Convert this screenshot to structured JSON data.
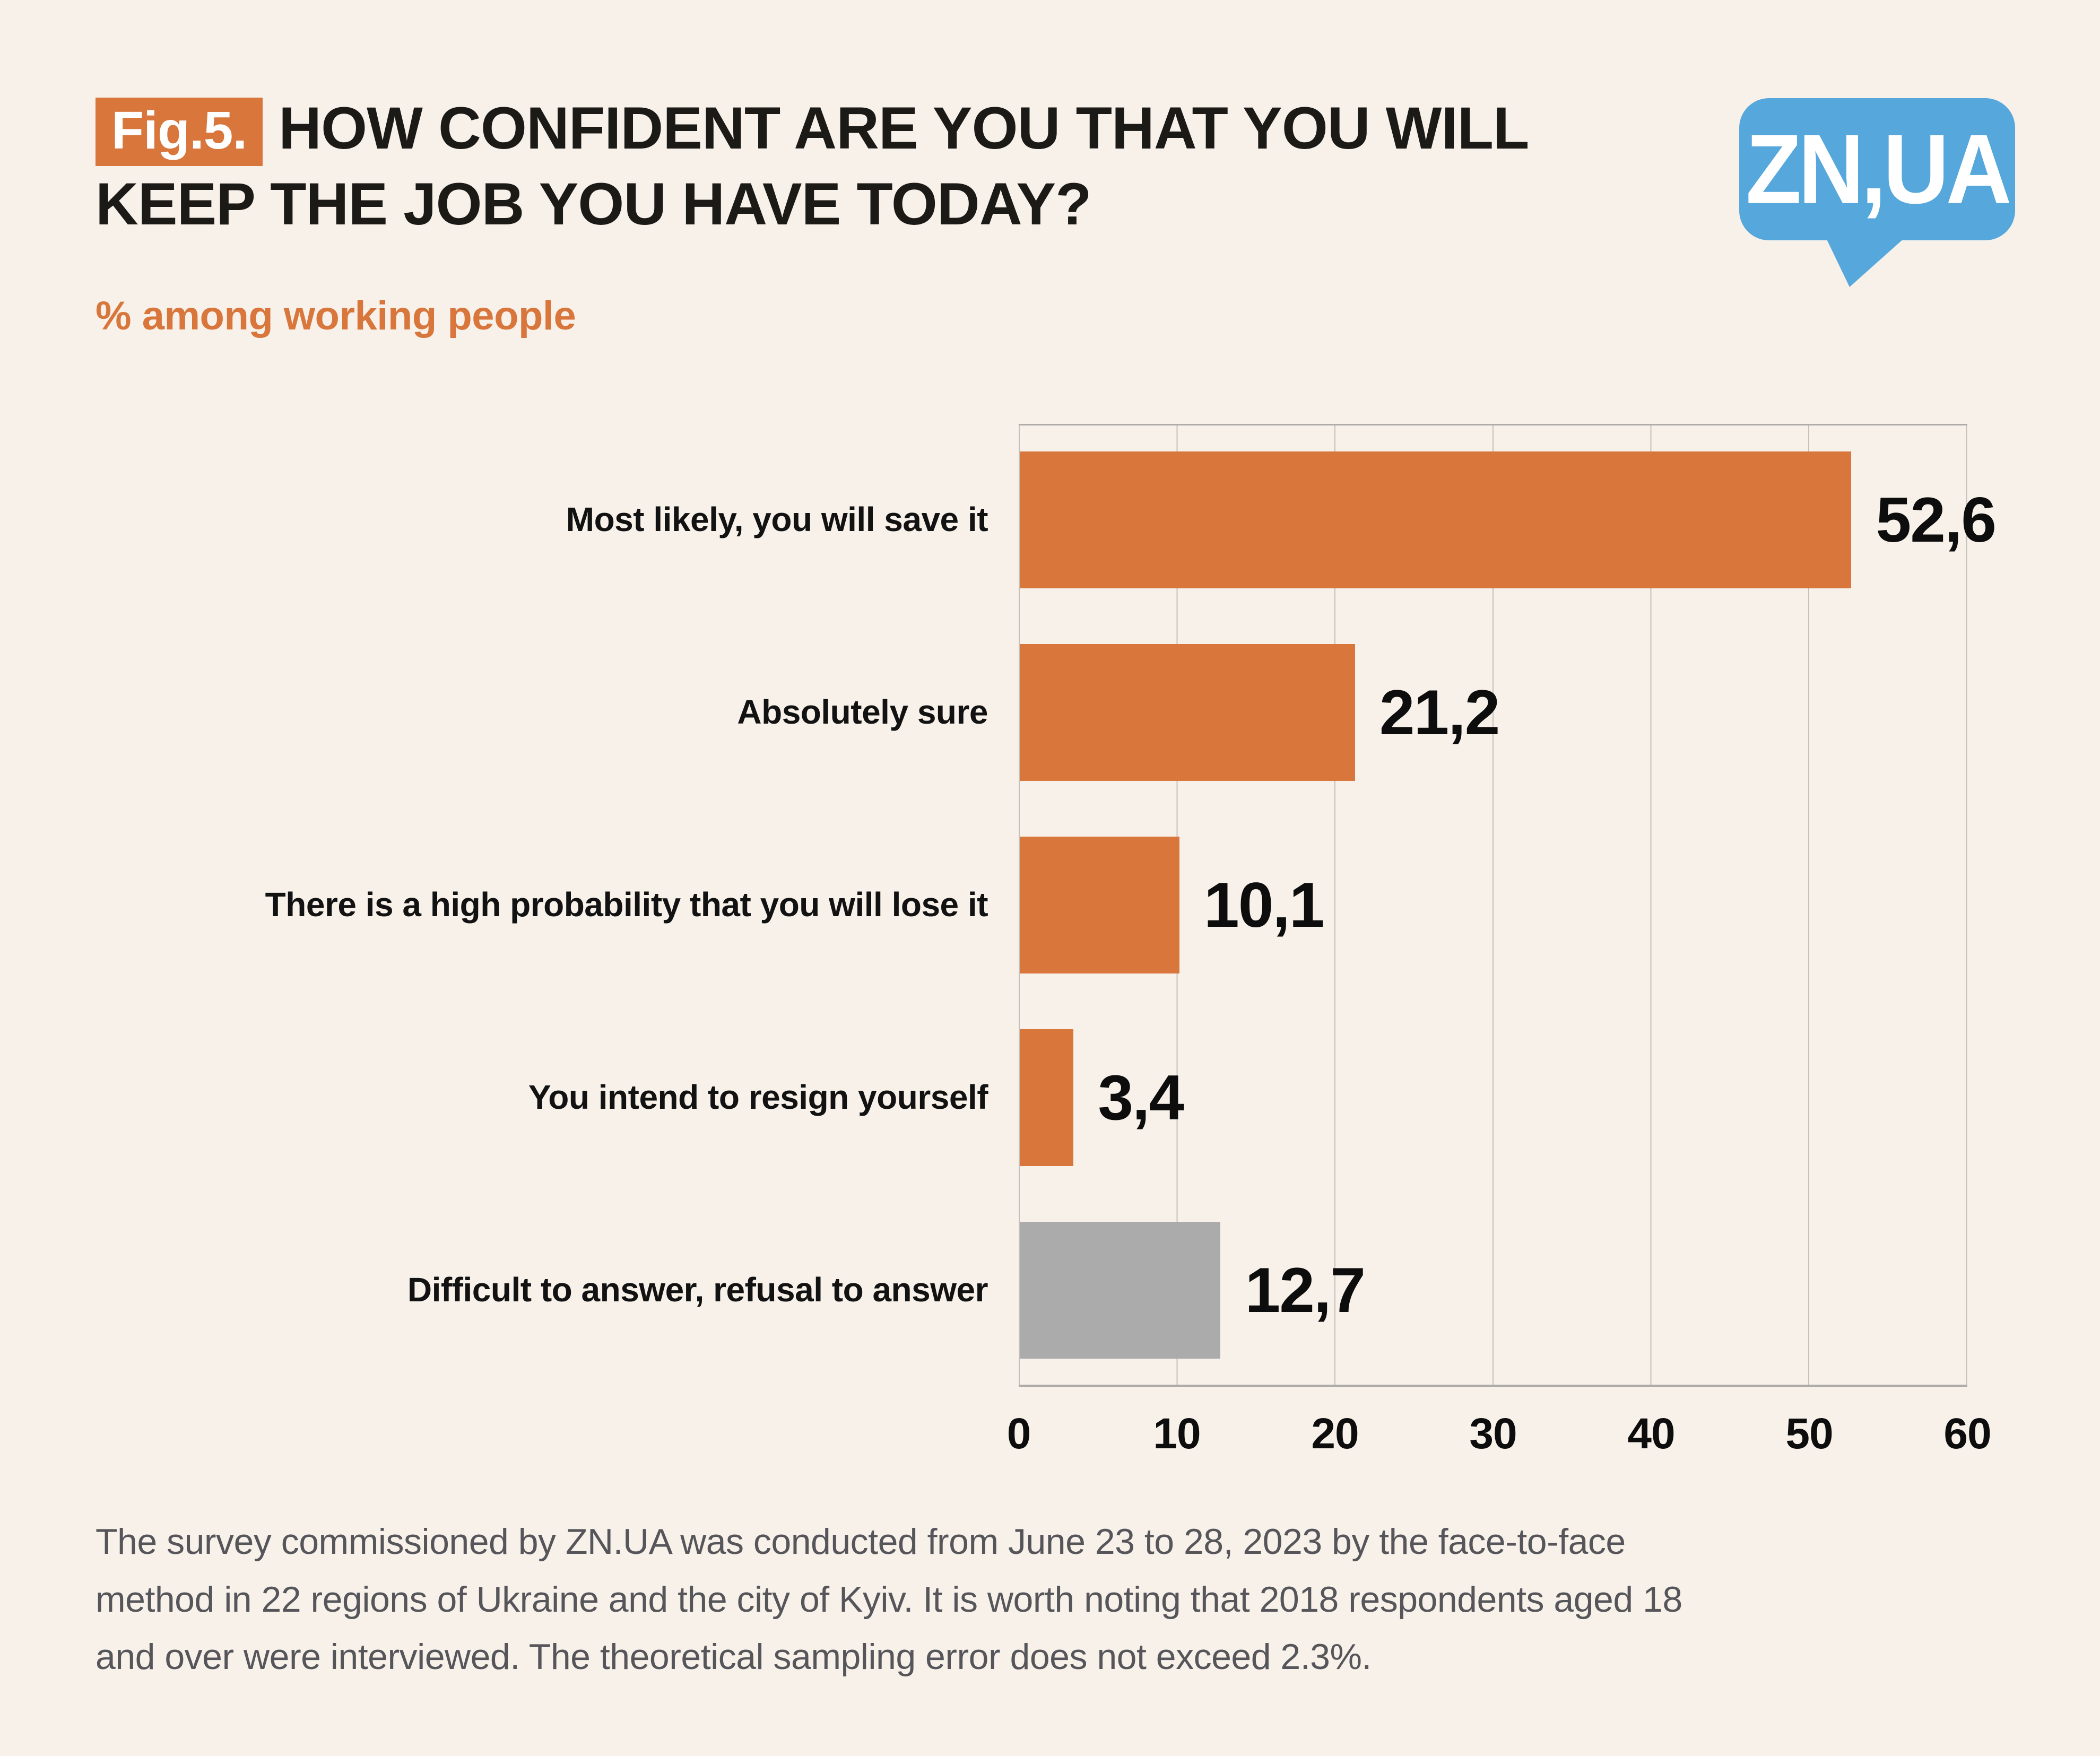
{
  "header": {
    "fig_label": "Fig.5.",
    "title_line1": "HOW CONFIDENT ARE YOU THAT YOU WILL",
    "title_line2": "KEEP THE JOB YOU HAVE TODAY?",
    "logo_text": "ZN,UA"
  },
  "subtitle": "% among working people",
  "chart_data": {
    "type": "bar",
    "orientation": "horizontal",
    "title": "How confident are you that you will keep the job you have today?",
    "subtitle": "% among working people",
    "categories": [
      "Most likely, you will save it",
      "Absolutely sure",
      "There is a high probability that you will lose it",
      "You intend to resign yourself",
      "Difficult to answer, refusal to answer"
    ],
    "values": [
      52.6,
      21.2,
      10.1,
      3.4,
      12.7
    ],
    "value_labels": [
      "52,6",
      "21,2",
      "10,1",
      "3,4",
      "12,7"
    ],
    "bar_colors": [
      "#D8763C",
      "#D8763C",
      "#D8763C",
      "#D8763C",
      "#ABABAB"
    ],
    "xlim": [
      0,
      60
    ],
    "x_ticks": [
      "0",
      "10",
      "20",
      "30",
      "40",
      "50",
      "60"
    ],
    "grid": "vertical-only",
    "legend": "none"
  },
  "footer": {
    "lines": [
      "The survey commissioned by ZN.UA was conducted from June 23 to 28, 2023 by the face-to-face",
      "method in 22 regions of Ukraine and the city of Kyiv. It is worth noting that 2018 respondents aged 18",
      "and over were interviewed. The theoretical sampling error does not exceed 2.3%."
    ]
  },
  "colors": {
    "background": "#F7F1EA",
    "accent_orange": "#D8763C",
    "neutral_gray_bar": "#ABABAB",
    "logo_blue": "#55A7DC",
    "text_dark": "#1C1A17",
    "footer_gray": "#55555A",
    "gridline": "#C4C0BB"
  }
}
